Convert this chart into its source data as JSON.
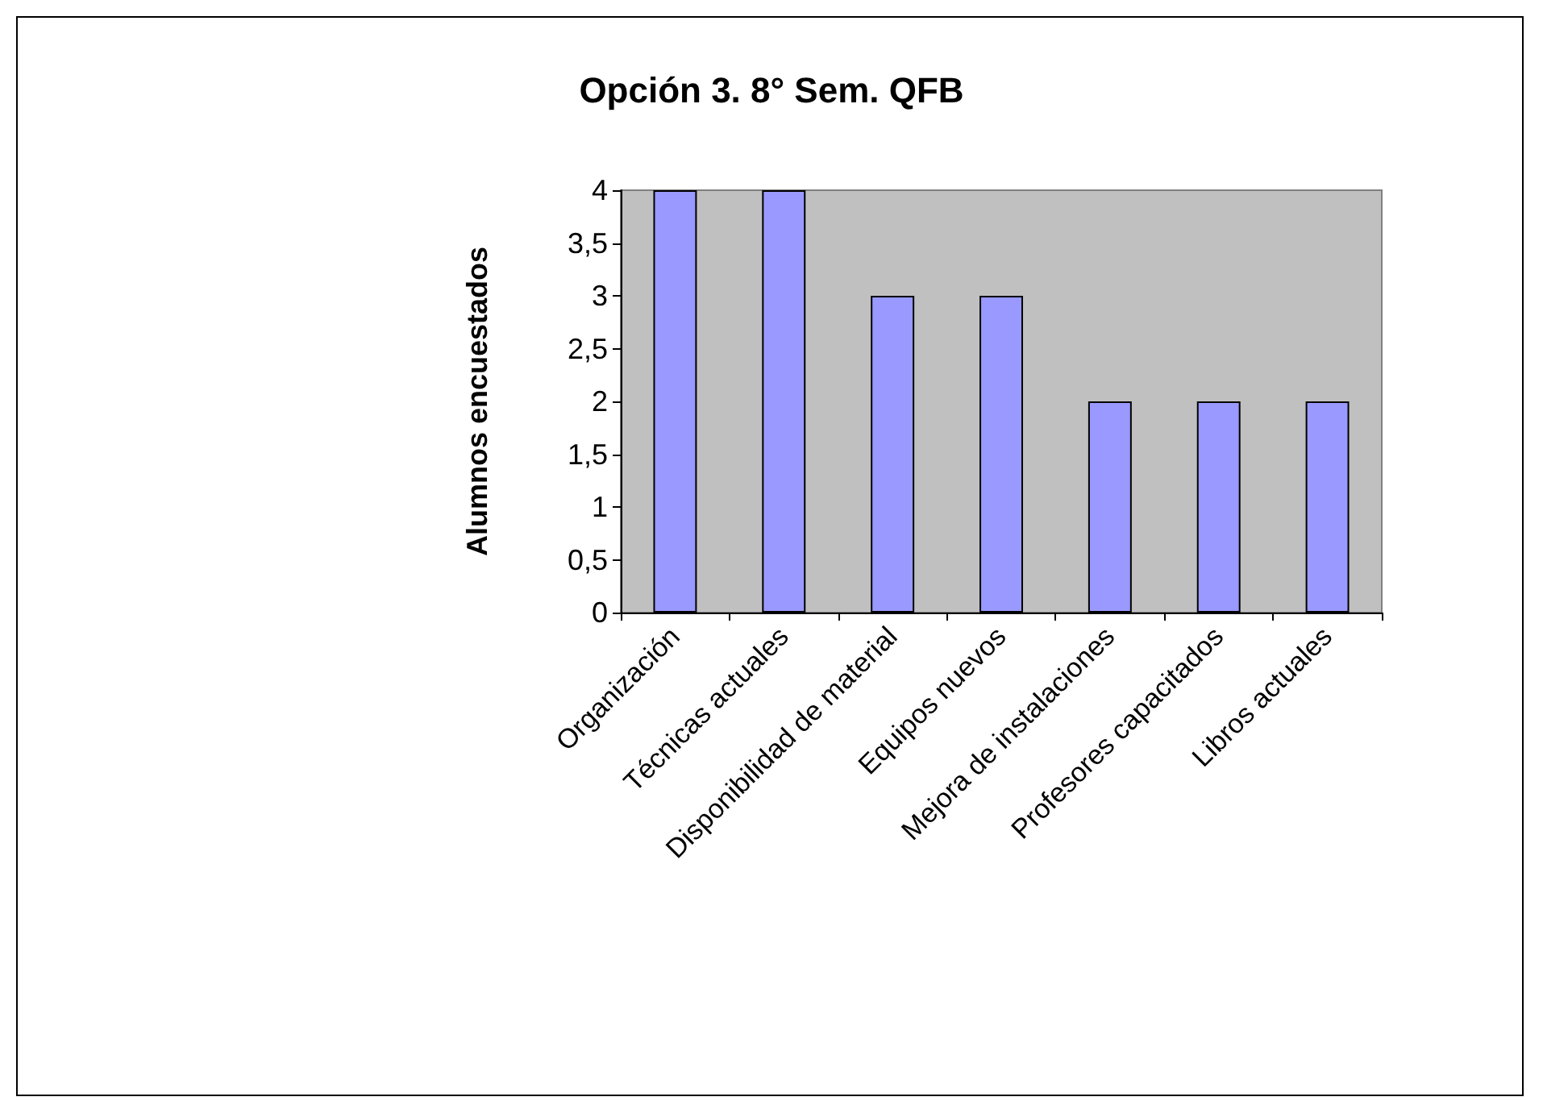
{
  "chart_data": {
    "type": "bar",
    "title": "Opción 3. 8° Sem. QFB",
    "ylabel": "Alumnos encuestados",
    "categories": [
      "Organización",
      "Técnicas actuales",
      "Disponibilidad de material",
      "Equipos nuevos",
      "Mejora de instalaciones",
      "Profesores capacitados",
      "Libros actuales"
    ],
    "values": [
      4,
      4,
      3,
      3,
      2,
      2,
      2
    ],
    "color": "#9999ff",
    "ylim": [
      0,
      4
    ],
    "yticks": [
      0,
      {
        "value": 0.5,
        "label": "0,5"
      },
      1,
      {
        "value": 1.5,
        "label": "1,5"
      },
      2,
      {
        "value": 2.5,
        "label": "2,5"
      },
      3,
      {
        "value": 3.5,
        "label": "3,5"
      },
      4
    ],
    "grid": false
  }
}
